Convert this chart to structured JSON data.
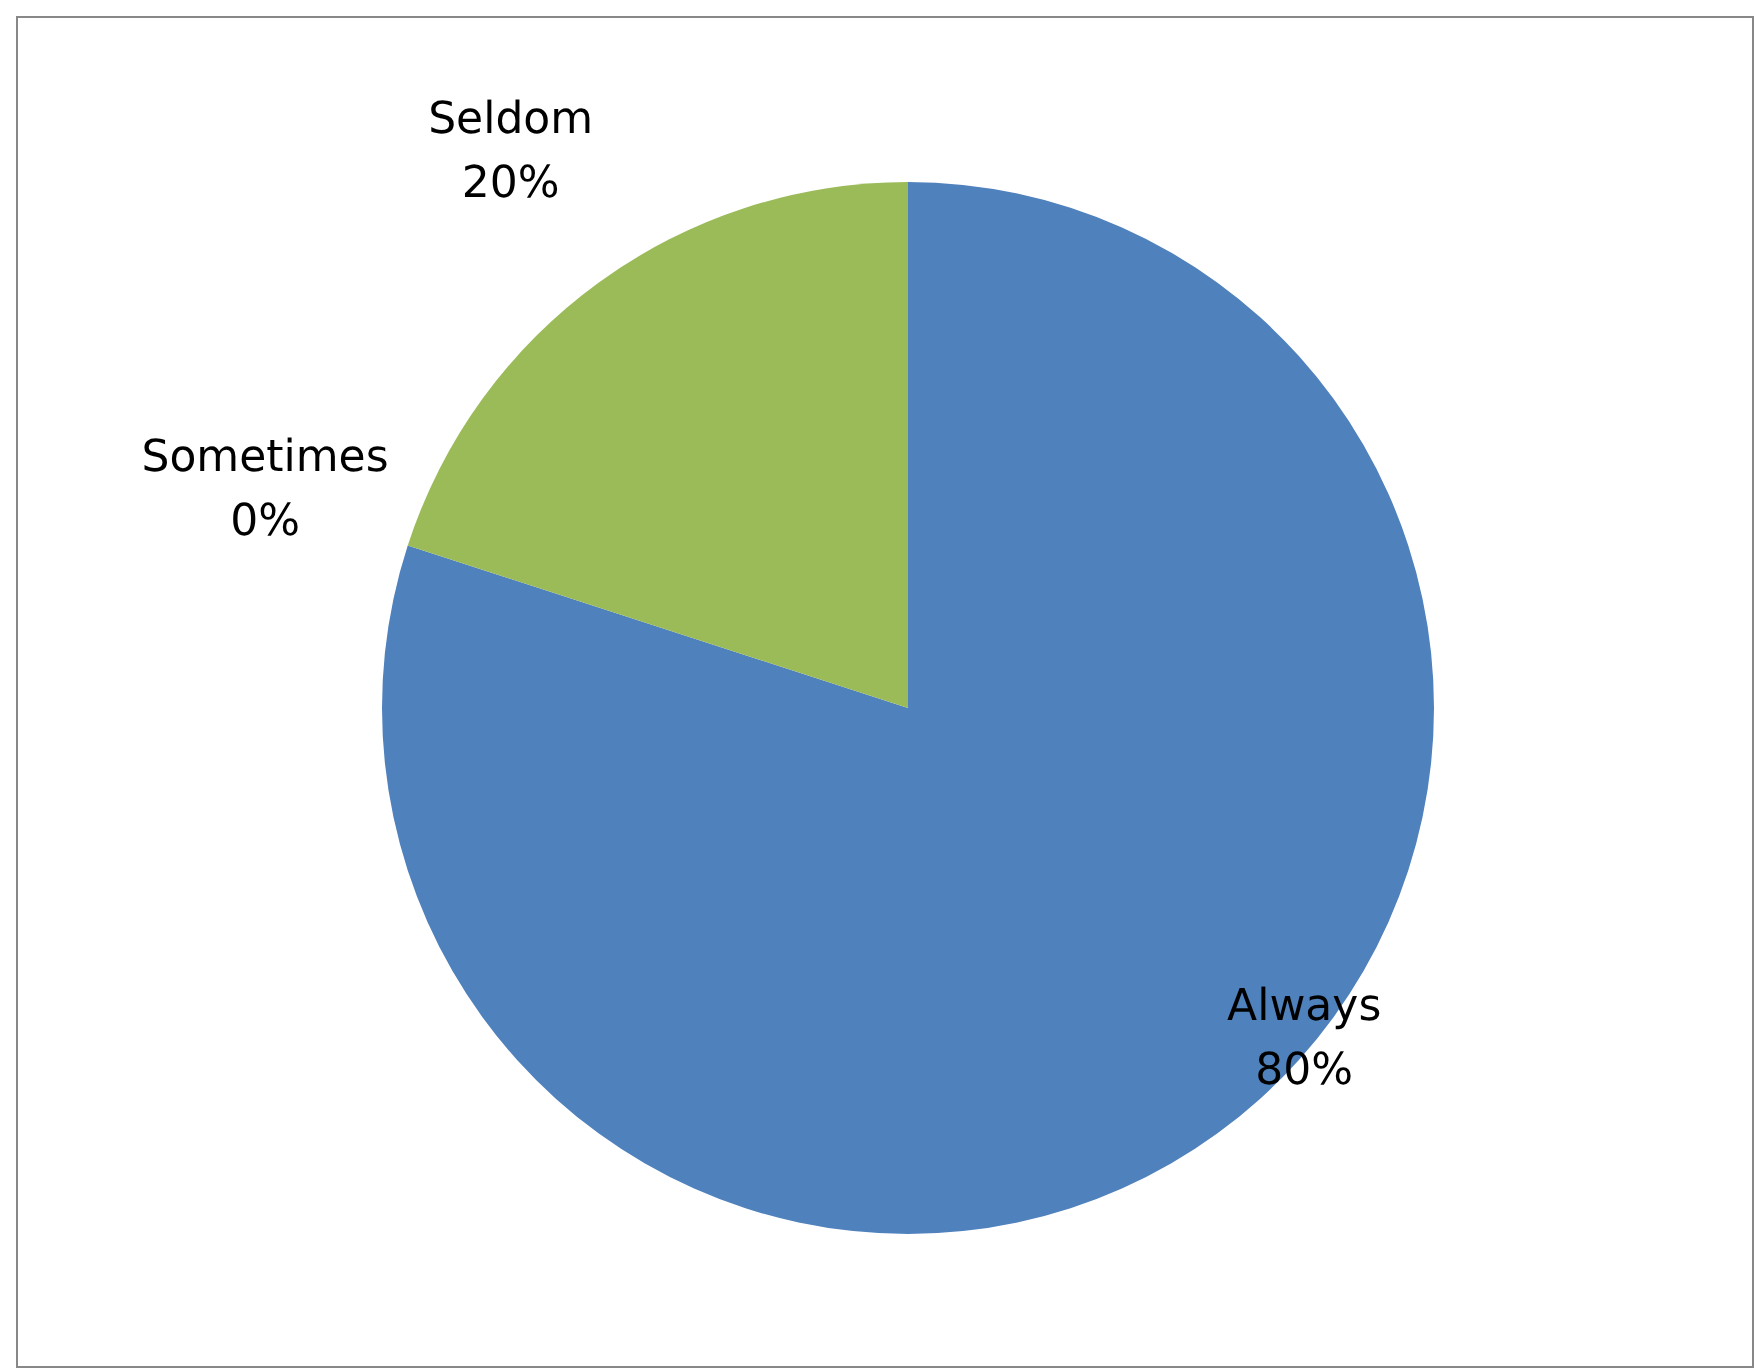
{
  "chart_data": {
    "type": "pie",
    "categories": [
      "Always",
      "Sometimes",
      "Seldom"
    ],
    "values": [
      80,
      0,
      20
    ],
    "colors": [
      "#4f81bd",
      "#c0504d",
      "#9bbb59"
    ],
    "value_labels": [
      "80%",
      "0%",
      "20%"
    ]
  }
}
